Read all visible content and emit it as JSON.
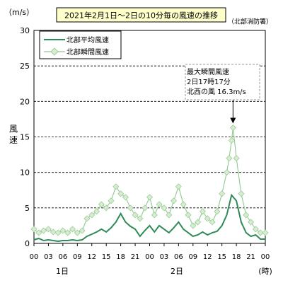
{
  "chart_data": {
    "type": "line",
    "title": "2021年2月1日～2日の10分毎の風速の推移",
    "source_note": "（北部消防署）",
    "ylabel_unit": "（m/s）",
    "ylabel": "風速",
    "xlabel_unit": "(時)",
    "ylim": [
      0,
      30
    ],
    "yticks": [
      0,
      5,
      10,
      15,
      20,
      25,
      30
    ],
    "xticks": [
      "00",
      "03",
      "06",
      "09",
      "12",
      "15",
      "18",
      "21",
      "00",
      "03",
      "06",
      "09",
      "12",
      "15",
      "18",
      "21",
      "00"
    ],
    "day_labels": [
      "1日",
      "2日"
    ],
    "grid": "horizontal dashed",
    "legend_position": "top-left",
    "colors": {
      "avg": "#2e8b57",
      "gust": "#90c890",
      "gust_marker": "#d8ecd0"
    },
    "annotation": {
      "lines": [
        "最大瞬間風速",
        "2日17時17分",
        "北西の風 16.3m/s"
      ],
      "peak_hour": 41.3,
      "peak_value": 16.3
    },
    "series": [
      {
        "name": "北部平均風速",
        "style": "line",
        "x_hours": [
          0,
          1,
          2,
          3,
          4,
          5,
          6,
          7,
          8,
          9,
          10,
          11,
          12,
          13,
          14,
          15,
          16,
          17,
          18,
          19,
          20,
          21,
          22,
          23,
          24,
          25,
          26,
          27,
          28,
          29,
          30,
          31,
          32,
          33,
          34,
          35,
          36,
          37,
          38,
          39,
          40,
          41,
          42,
          43,
          44,
          45,
          46,
          47,
          48
        ],
        "values": [
          0.5,
          0.7,
          0.4,
          0.5,
          0.4,
          0.3,
          0.4,
          0.4,
          0.5,
          0.4,
          0.5,
          1.0,
          1.3,
          1.6,
          2.0,
          1.6,
          2.2,
          3.0,
          4.2,
          3.0,
          2.4,
          2.0,
          1.0,
          1.8,
          2.5,
          1.6,
          2.5,
          2.0,
          1.5,
          2.2,
          3.0,
          2.0,
          1.5,
          1.0,
          1.2,
          1.6,
          1.2,
          1.5,
          1.7,
          2.5,
          4.0,
          6.8,
          6.0,
          3.0,
          1.5,
          1.0,
          1.2,
          0.6,
          0.6
        ]
      },
      {
        "name": "北部瞬間風速",
        "style": "line+diamond",
        "x_hours": [
          0,
          1,
          2,
          3,
          4,
          5,
          6,
          7,
          8,
          9,
          10,
          11,
          12,
          13,
          14,
          15,
          16,
          17,
          18,
          19,
          20,
          21,
          22,
          23,
          24,
          25,
          26,
          27,
          28,
          29,
          30,
          31,
          32,
          33,
          34,
          35,
          36,
          37,
          38,
          39,
          40,
          40.5,
          41,
          41.3,
          42,
          43,
          44,
          45,
          46,
          47,
          48
        ],
        "values": [
          2.0,
          1.5,
          1.8,
          2.0,
          1.6,
          1.5,
          1.8,
          1.5,
          2.0,
          1.5,
          1.8,
          3.5,
          4.0,
          4.5,
          5.5,
          5.0,
          6.0,
          8.0,
          7.0,
          6.5,
          5.0,
          4.0,
          3.5,
          5.0,
          6.5,
          4.0,
          5.5,
          5.0,
          4.0,
          6.0,
          8.0,
          5.5,
          4.0,
          2.5,
          3.0,
          4.5,
          3.5,
          3.0,
          4.5,
          7.0,
          10.0,
          12.0,
          14.5,
          16.3,
          12.0,
          7.0,
          4.0,
          3.0,
          2.0,
          1.5,
          1.5
        ]
      }
    ]
  }
}
